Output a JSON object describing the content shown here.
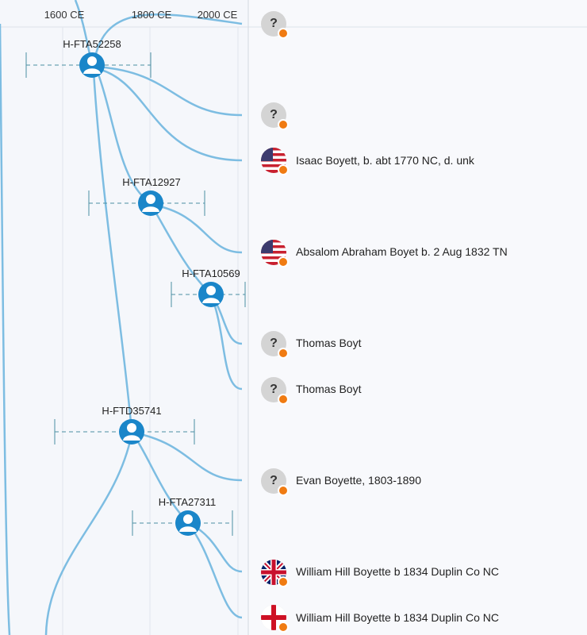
{
  "axis": {
    "labels": [
      "1600 CE",
      "1800 CE",
      "2000 CE"
    ]
  },
  "nodes": [
    {
      "id": "H-FTA52258"
    },
    {
      "id": "H-FTA12927"
    },
    {
      "id": "H-FTA10569"
    },
    {
      "id": "H-FTD35741"
    },
    {
      "id": "H-FTA27311"
    }
  ],
  "leaves": [
    {
      "name": "",
      "icon": "unknown-icon"
    },
    {
      "name": "",
      "icon": "unknown-icon"
    },
    {
      "name": "Isaac Boyett, b. abt 1770 NC, d. unk",
      "icon": "us-flag-icon"
    },
    {
      "name": "Absalom Abraham Boyet b. 2 Aug 1832 TN",
      "icon": "us-flag-icon"
    },
    {
      "name": "Thomas Boyt",
      "icon": "unknown-icon"
    },
    {
      "name": "Thomas Boyt",
      "icon": "unknown-icon"
    },
    {
      "name": "Evan Boyette, 1803-1890",
      "icon": "unknown-icon"
    },
    {
      "name": "William Hill Boyette b 1834 Duplin Co NC",
      "icon": "uk-flag-icon"
    },
    {
      "name": "William Hill Boyette b 1834 Duplin Co NC",
      "icon": "england-flag-icon"
    }
  ],
  "colors": {
    "branch": "#7dbde2",
    "node": "#1a86c9",
    "range": "#4a8fa3",
    "badge": "#f07b12"
  }
}
